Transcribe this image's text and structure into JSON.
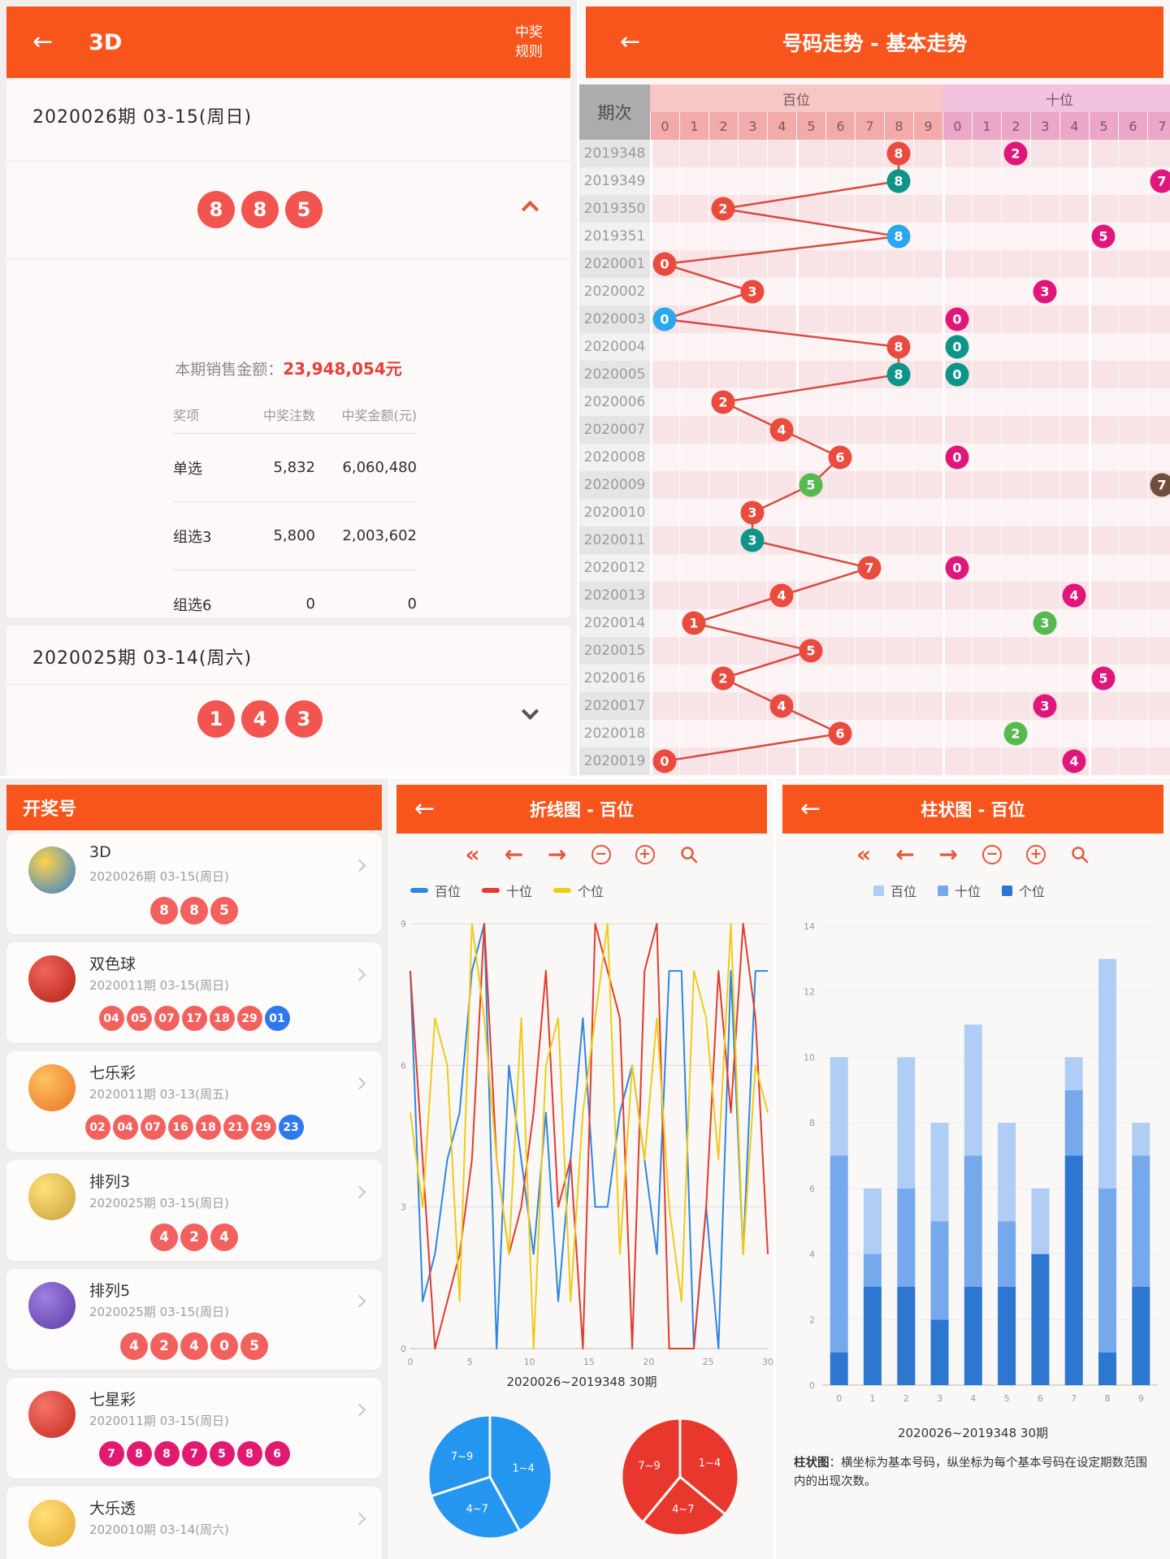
{
  "tl": {
    "title": "3D",
    "rules": [
      "中奖",
      "规则"
    ],
    "cards": [
      {
        "period": "2020026期  03-15(周日)",
        "balls": [
          "8",
          "8",
          "5"
        ],
        "sales_label": "本期销售金额：",
        "sales_value": "23,948,054元",
        "table": {
          "headers": [
            "奖项",
            "中奖注数",
            "中奖金额(元)"
          ],
          "rows": [
            [
              "单选",
              "5,832",
              "6,060,480"
            ],
            [
              "组选3",
              "5,800",
              "2,003,602"
            ],
            [
              "组选6",
              "0",
              "0"
            ]
          ]
        }
      },
      {
        "period": "2020025期  03-14(周六)",
        "balls": [
          "1",
          "4",
          "3"
        ]
      }
    ]
  },
  "trend": {
    "title": "号码走势 - 基本走势",
    "corner": "期次",
    "sections": [
      {
        "label": "百位",
        "digits": [
          "0",
          "1",
          "2",
          "3",
          "4",
          "5",
          "6",
          "7",
          "8",
          "9"
        ]
      },
      {
        "label": "十位",
        "digits": [
          "0",
          "1",
          "2",
          "3",
          "4",
          "5",
          "6",
          "7"
        ]
      }
    ],
    "ball_colors": {
      "red": "#EA4B3F",
      "teal": "#0E9488",
      "blue": "#2BA7F0",
      "green": "#56BA51",
      "pink": "#E0177B",
      "brown": "#6F4E3E"
    },
    "rows": [
      {
        "p": "2019348",
        "bai": {
          "v": "8",
          "c": "red"
        },
        "shi": {
          "v": "2",
          "c": "pink"
        }
      },
      {
        "p": "2019349",
        "bai": {
          "v": "8",
          "c": "teal"
        },
        "shi": {
          "v": "7",
          "c": "pink"
        }
      },
      {
        "p": "2019350",
        "bai": {
          "v": "2",
          "c": "red"
        },
        "shi": null
      },
      {
        "p": "2019351",
        "bai": {
          "v": "8",
          "c": "blue"
        },
        "shi": {
          "v": "5",
          "c": "pink"
        }
      },
      {
        "p": "2020001",
        "bai": {
          "v": "0",
          "c": "red"
        },
        "shi": null
      },
      {
        "p": "2020002",
        "bai": {
          "v": "3",
          "c": "red"
        },
        "shi": {
          "v": "3",
          "c": "pink"
        }
      },
      {
        "p": "2020003",
        "bai": {
          "v": "0",
          "c": "blue"
        },
        "shi": {
          "v": "0",
          "c": "pink"
        }
      },
      {
        "p": "2020004",
        "bai": {
          "v": "8",
          "c": "red"
        },
        "shi": {
          "v": "0",
          "c": "teal"
        }
      },
      {
        "p": "2020005",
        "bai": {
          "v": "8",
          "c": "teal"
        },
        "shi": {
          "v": "0",
          "c": "teal"
        }
      },
      {
        "p": "2020006",
        "bai": {
          "v": "2",
          "c": "red"
        },
        "shi": null
      },
      {
        "p": "2020007",
        "bai": {
          "v": "4",
          "c": "red"
        },
        "shi": null
      },
      {
        "p": "2020008",
        "bai": {
          "v": "6",
          "c": "red"
        },
        "shi": {
          "v": "0",
          "c": "pink"
        }
      },
      {
        "p": "2020009",
        "bai": {
          "v": "5",
          "c": "green"
        },
        "shi": {
          "v": "7",
          "c": "brown"
        }
      },
      {
        "p": "2020010",
        "bai": {
          "v": "3",
          "c": "red"
        },
        "shi": null
      },
      {
        "p": "2020011",
        "bai": {
          "v": "3",
          "c": "teal"
        },
        "shi": null
      },
      {
        "p": "2020012",
        "bai": {
          "v": "7",
          "c": "red"
        },
        "shi": {
          "v": "0",
          "c": "pink"
        }
      },
      {
        "p": "2020013",
        "bai": {
          "v": "4",
          "c": "red"
        },
        "shi": {
          "v": "4",
          "c": "pink"
        }
      },
      {
        "p": "2020014",
        "bai": {
          "v": "1",
          "c": "red"
        },
        "shi": {
          "v": "3",
          "c": "green"
        }
      },
      {
        "p": "2020015",
        "bai": {
          "v": "5",
          "c": "red"
        },
        "shi": null
      },
      {
        "p": "2020016",
        "bai": {
          "v": "2",
          "c": "red"
        },
        "shi": {
          "v": "5",
          "c": "pink"
        }
      },
      {
        "p": "2020017",
        "bai": {
          "v": "4",
          "c": "red"
        },
        "shi": {
          "v": "3",
          "c": "pink"
        }
      },
      {
        "p": "2020018",
        "bai": {
          "v": "6",
          "c": "red"
        },
        "shi": {
          "v": "2",
          "c": "green"
        }
      },
      {
        "p": "2020019",
        "bai": {
          "v": "0",
          "c": "red"
        },
        "shi": {
          "v": "4",
          "c": "pink"
        }
      }
    ]
  },
  "drawlist": {
    "header": "开奖号",
    "ball_colors": {
      "red": "#F2615E",
      "blue": "#2E79F0",
      "magenta": "#E01A70"
    },
    "items": [
      {
        "name": "3D",
        "period": "2020026期  03-15(周日)",
        "icon": "logo-3d",
        "balls": [
          {
            "n": "8",
            "c": "red"
          },
          {
            "n": "8",
            "c": "red"
          },
          {
            "n": "5",
            "c": "red"
          }
        ]
      },
      {
        "name": "双色球",
        "period": "2020011期  03-15(周日)",
        "icon": "logo-ssq",
        "balls": [
          {
            "n": "04",
            "c": "red"
          },
          {
            "n": "05",
            "c": "red"
          },
          {
            "n": "07",
            "c": "red"
          },
          {
            "n": "17",
            "c": "red"
          },
          {
            "n": "18",
            "c": "red"
          },
          {
            "n": "29",
            "c": "red"
          },
          {
            "n": "01",
            "c": "blue"
          }
        ]
      },
      {
        "name": "七乐彩",
        "period": "2020011期  03-13(周五)",
        "icon": "logo-qlc",
        "balls": [
          {
            "n": "02",
            "c": "red"
          },
          {
            "n": "04",
            "c": "red"
          },
          {
            "n": "07",
            "c": "red"
          },
          {
            "n": "16",
            "c": "red"
          },
          {
            "n": "18",
            "c": "red"
          },
          {
            "n": "21",
            "c": "red"
          },
          {
            "n": "29",
            "c": "red"
          },
          {
            "n": "23",
            "c": "blue"
          }
        ]
      },
      {
        "name": "排列3",
        "period": "2020025期  03-15(周日)",
        "icon": "logo-pl3",
        "balls": [
          {
            "n": "4",
            "c": "red"
          },
          {
            "n": "2",
            "c": "red"
          },
          {
            "n": "4",
            "c": "red"
          }
        ]
      },
      {
        "name": "排列5",
        "period": "2020025期  03-15(周日)",
        "icon": "logo-pl5",
        "balls": [
          {
            "n": "4",
            "c": "red"
          },
          {
            "n": "2",
            "c": "red"
          },
          {
            "n": "4",
            "c": "red"
          },
          {
            "n": "0",
            "c": "red"
          },
          {
            "n": "5",
            "c": "red"
          }
        ]
      },
      {
        "name": "七星彩",
        "period": "2020011期  03-15(周日)",
        "icon": "logo-qxc",
        "balls": [
          {
            "n": "7",
            "c": "magenta"
          },
          {
            "n": "8",
            "c": "magenta"
          },
          {
            "n": "8",
            "c": "magenta"
          },
          {
            "n": "7",
            "c": "magenta"
          },
          {
            "n": "5",
            "c": "magenta"
          },
          {
            "n": "8",
            "c": "magenta"
          },
          {
            "n": "6",
            "c": "magenta"
          }
        ]
      },
      {
        "name": "大乐透",
        "period": "2020010期  03-14(周六)",
        "icon": "logo-dlt",
        "balls": []
      }
    ],
    "icon_colors": {
      "logo-3d": [
        "#FFD24D",
        "#2F7FD1"
      ],
      "logo-ssq": [
        "#F0655A",
        "#B51F16"
      ],
      "logo-qlc": [
        "#FFC25C",
        "#E8742A"
      ],
      "logo-pl3": [
        "#FFE27A",
        "#C99E3B"
      ],
      "logo-pl5": [
        "#9F7FE0",
        "#5B3AA8"
      ],
      "logo-qxc": [
        "#F57368",
        "#C42B20"
      ],
      "logo-dlt": [
        "#FFE07A",
        "#E3A92E"
      ]
    }
  },
  "linepanel": {
    "title": "折线图 - 百位"
  },
  "barpanel": {
    "title": "柱状图 - 百位"
  },
  "toolbar_icons": [
    "fast-backward",
    "step-backward",
    "step-forward",
    "zoom-out",
    "zoom-in",
    "search"
  ],
  "chart_data": [
    {
      "id": "line",
      "type": "line",
      "title": "折线图 - 百位",
      "legend": [
        "百位",
        "十位",
        "个位"
      ],
      "colors": [
        "#2E86E0",
        "#E23B2E",
        "#EFCB18"
      ],
      "x_ticks": [
        0,
        5,
        10,
        15,
        20,
        25,
        30
      ],
      "y_ticks": [
        0,
        3,
        6,
        9
      ],
      "ylim": [
        0,
        9
      ],
      "caption": "2020026~2019348  30期",
      "note": "digit values per draw, newest (2020026) to oldest (2019348); hidden draws estimated from pixels",
      "series": [
        {
          "name": "百位",
          "values": [
            8,
            1,
            2,
            4,
            5,
            8,
            9,
            0,
            6,
            4,
            2,
            5,
            1,
            4,
            7,
            3,
            3,
            5,
            6,
            4,
            2,
            8,
            8,
            0,
            3,
            0,
            8,
            2,
            8,
            8
          ]
        },
        {
          "name": "十位",
          "values": [
            8,
            4,
            0,
            1,
            2,
            4,
            9,
            4,
            2,
            3,
            5,
            8,
            3,
            4,
            0,
            9,
            8,
            7,
            0,
            8,
            9,
            0,
            0,
            0,
            3,
            8,
            5,
            9,
            7,
            2
          ]
        },
        {
          "name": "个位",
          "values": [
            5,
            3,
            7,
            6,
            1,
            9,
            7,
            4,
            2,
            7,
            0,
            6,
            7,
            1,
            5,
            7,
            9,
            2,
            6,
            4,
            7,
            3,
            1,
            8,
            7,
            4,
            9,
            2,
            6,
            5
          ]
        }
      ]
    },
    {
      "id": "pie-left",
      "type": "pie",
      "color": "#2496F0",
      "slices": [
        {
          "label": "1~4",
          "value": 42
        },
        {
          "label": "4~7",
          "value": 28
        },
        {
          "label": "7~9",
          "value": 30
        }
      ]
    },
    {
      "id": "pie-right",
      "type": "pie",
      "color": "#E8372C",
      "slices": [
        {
          "label": "1~4",
          "value": 36
        },
        {
          "label": "4~7",
          "value": 25
        },
        {
          "label": "7~9",
          "value": 39
        }
      ]
    },
    {
      "id": "bar",
      "type": "bar",
      "stacked": true,
      "title": "柱状图 - 百位",
      "categories": [
        "0",
        "1",
        "2",
        "3",
        "4",
        "5",
        "6",
        "7",
        "8",
        "9"
      ],
      "legend": [
        "百位",
        "十位",
        "个位"
      ],
      "legend_colors": [
        "#AFCDF5",
        "#76A8EC",
        "#2E77D0"
      ],
      "ylim": [
        0,
        14
      ],
      "y_ticks": [
        0,
        2,
        4,
        6,
        8,
        10,
        12,
        14
      ],
      "caption": "2020026~2019348  30期",
      "series": [
        {
          "name": "个位",
          "color": "#2E77D0",
          "values": [
            1,
            3,
            3,
            2,
            3,
            3,
            4,
            7,
            1,
            3
          ]
        },
        {
          "name": "十位",
          "color": "#76A8EC",
          "values": [
            6,
            1,
            3,
            3,
            4,
            2,
            0,
            2,
            5,
            4
          ]
        },
        {
          "name": "百位",
          "color": "#AFCDF5",
          "values": [
            3,
            2,
            4,
            3,
            4,
            3,
            2,
            1,
            7,
            1
          ]
        }
      ],
      "totals": [
        10,
        6,
        10,
        8,
        11,
        8,
        6,
        10,
        13,
        8
      ],
      "footer_bold": "柱状图",
      "footer_rest": "：横坐标为基本号码，纵坐标为每个基本号码在设定期数范围内的出现次数。"
    }
  ]
}
